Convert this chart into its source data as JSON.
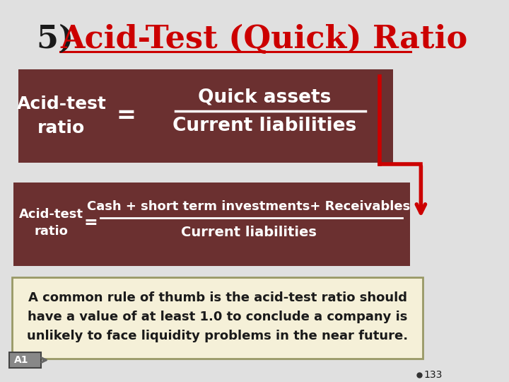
{
  "bg_color": "#e0e0e0",
  "title_num": "5) ",
  "title_text": "Acid-Test (Quick) Ratio",
  "title_color_num": "#1a1a1a",
  "title_color_text": "#cc0000",
  "box1_color": "#6b3030",
  "box2_color": "#6b3030",
  "box_note_color": "#f5f0d8",
  "box_note_border": "#999966",
  "left_label": "Acid-test\nratio",
  "eq_sign": "=",
  "numerator1": "Quick assets",
  "denominator1": "Current liabilities",
  "left_label2": "Acid-test\nratio",
  "eq_sign2": "=",
  "numerator2": "Cash + short term investments+ Receivables",
  "denominator2": "Current liabilities",
  "note_text": "A common rule of thumb is the acid-test ratio should\nhave a value of at least 1.0 to conclude a company is\nunlikely to face liquidity problems in the near future.",
  "arrow_color": "#cc0000",
  "a1_label": "A1",
  "page_num": "133",
  "white": "#ffffff",
  "black": "#1a1a1a"
}
